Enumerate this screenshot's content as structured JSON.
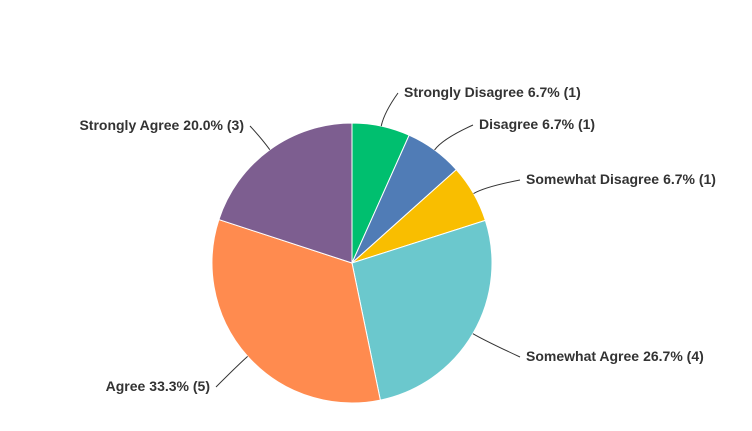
{
  "chart_data": {
    "type": "pie",
    "categories": [
      "Strongly Disagree",
      "Disagree",
      "Somewhat Disagree",
      "Somewhat Agree",
      "Agree",
      "Strongly Agree"
    ],
    "values": [
      6.7,
      6.7,
      6.7,
      26.7,
      33.3,
      20
    ],
    "value_labels": [
      "6.7% (1)",
      "6.7% (1)",
      "6.7% (1)",
      "26.7% (4)",
      "33.3% (5)",
      "20.0% (3)"
    ],
    "colors": [
      "#00bf6f",
      "#507cb6",
      "#f9be00",
      "#6bc8cd",
      "#ff8b4f",
      "#7d5e90"
    ]
  }
}
